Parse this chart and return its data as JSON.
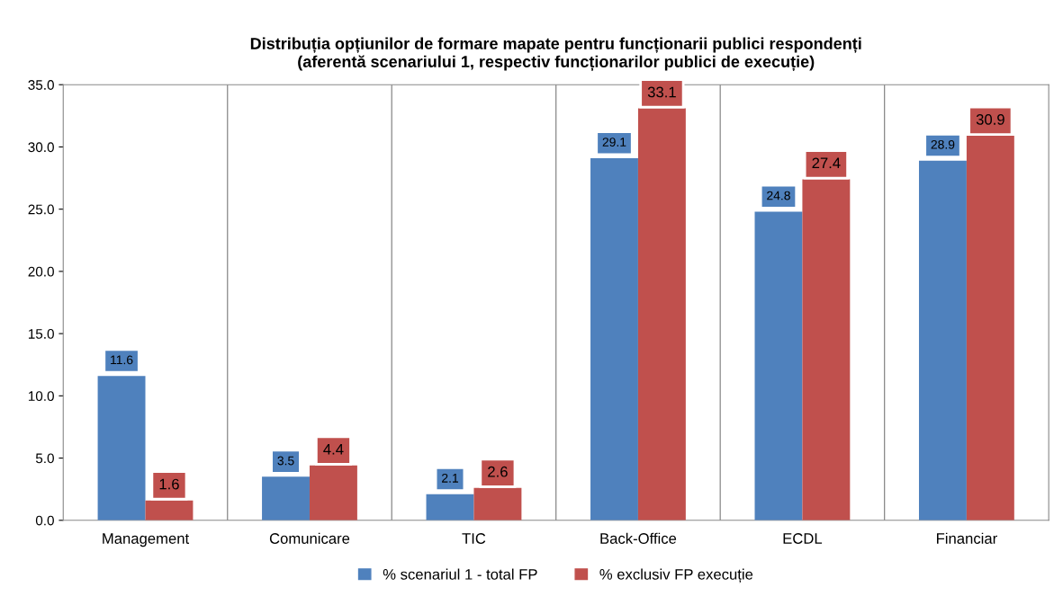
{
  "chart_data": {
    "type": "bar",
    "title": "Distribuția opțiunilor de formare mapate pentru funcționarii publici respondenți\n(aferentă scenariului 1, respectiv funcționarilor publici de execuție)",
    "categories": [
      "Management",
      "Comunicare",
      "TIC",
      "Back-Office",
      "ECDL",
      "Financiar"
    ],
    "series": [
      {
        "name": "% scenariul 1 - total FP",
        "color": "#4f81bd",
        "values": [
          11.6,
          3.5,
          2.1,
          29.1,
          24.8,
          28.9
        ]
      },
      {
        "name": "% exclusiv FP execuție",
        "color": "#c0504d",
        "values": [
          1.6,
          4.4,
          2.6,
          33.1,
          27.4,
          30.9
        ]
      }
    ],
    "ylim": [
      0,
      35
    ],
    "yticks": [
      {
        "value": 0,
        "label": "0.0"
      },
      {
        "value": 5,
        "label": "5.0"
      },
      {
        "value": 10,
        "label": "10.0"
      },
      {
        "value": 15,
        "label": "15.0"
      },
      {
        "value": 20,
        "label": "20.0"
      },
      {
        "value": 25,
        "label": "25.0"
      },
      {
        "value": 30,
        "label": "30.0"
      },
      {
        "value": 35,
        "label": "35.0"
      }
    ],
    "grid": "x",
    "legend": "bottom",
    "data_labels": true
  }
}
